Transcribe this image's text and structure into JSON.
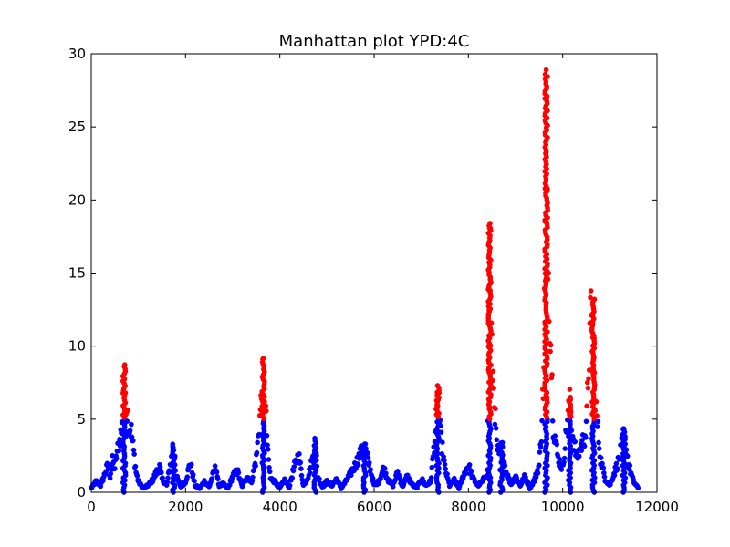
{
  "chart_data": {
    "type": "scatter",
    "title": "Manhattan plot YPD:4C",
    "xlabel": "",
    "ylabel": "",
    "xlim": [
      0,
      12000
    ],
    "ylim": [
      0,
      30
    ],
    "xticks": [
      0,
      2000,
      4000,
      6000,
      8000,
      10000,
      12000
    ],
    "yticks": [
      0,
      5,
      10,
      15,
      20,
      25,
      30
    ],
    "threshold": 5,
    "colors": {
      "below_threshold": "#0000ff",
      "above_threshold": "#ff0000"
    },
    "x_range_data": [
      0,
      11600
    ],
    "peaks": [
      {
        "x": 700,
        "y": 8.6
      },
      {
        "x": 3650,
        "y": 8.9
      },
      {
        "x": 7350,
        "y": 7.3
      },
      {
        "x": 8450,
        "y": 18.4
      },
      {
        "x": 9650,
        "y": 28.6
      },
      {
        "x": 10150,
        "y": 6.5
      },
      {
        "x": 10650,
        "y": 13.2
      },
      {
        "x": 11300,
        "y": 4.3
      },
      {
        "x": 4750,
        "y": 3.7
      },
      {
        "x": 5800,
        "y": 3.3
      },
      {
        "x": 1750,
        "y": 3.3
      },
      {
        "x": 8700,
        "y": 3.4
      }
    ],
    "series": [
      {
        "name": "y",
        "x": [
          0,
          100,
          200,
          300,
          350,
          400,
          450,
          500,
          550,
          600,
          650,
          700,
          750,
          800,
          850,
          900,
          950,
          1000,
          1100,
          1200,
          1300,
          1400,
          1450,
          1500,
          1600,
          1700,
          1750,
          1800,
          1900,
          2000,
          2100,
          2200,
          2300,
          2400,
          2500,
          2600,
          2650,
          2700,
          2800,
          2900,
          3000,
          3100,
          3200,
          3300,
          3400,
          3500,
          3550,
          3600,
          3650,
          3700,
          3750,
          3800,
          3900,
          4000,
          4100,
          4200,
          4300,
          4400,
          4500,
          4600,
          4700,
          4750,
          4800,
          4900,
          5000,
          5100,
          5200,
          5300,
          5400,
          5500,
          5600,
          5700,
          5800,
          5900,
          6000,
          6100,
          6200,
          6300,
          6400,
          6500,
          6600,
          6700,
          6800,
          6900,
          7000,
          7100,
          7200,
          7300,
          7350,
          7400,
          7500,
          7600,
          7700,
          7800,
          7900,
          8000,
          8100,
          8200,
          8300,
          8400,
          8450,
          8500,
          8550,
          8600,
          8650,
          8700,
          8800,
          8900,
          9000,
          9100,
          9200,
          9300,
          9400,
          9500,
          9550,
          9600,
          9650,
          9700,
          9750,
          9800,
          9900,
          10000,
          10050,
          10100,
          10150,
          10200,
          10300,
          10400,
          10500,
          10550,
          10600,
          10650,
          10700,
          10750,
          10800,
          10900,
          11000,
          11100,
          11200,
          11300,
          11400,
          11500,
          11600
        ],
        "y": [
          0.3,
          0.8,
          0.5,
          1.5,
          2.0,
          1.2,
          2.3,
          1.8,
          3.0,
          3.8,
          4.8,
          8.6,
          6.5,
          4.9,
          4.5,
          3.0,
          1.5,
          0.8,
          0.3,
          0.5,
          0.9,
          1.6,
          1.9,
          1.0,
          0.5,
          2.5,
          3.3,
          1.2,
          0.4,
          0.8,
          2.2,
          0.5,
          0.3,
          0.8,
          0.4,
          1.5,
          1.9,
          0.5,
          0.6,
          0.3,
          1.2,
          1.6,
          0.4,
          1.2,
          0.8,
          2.5,
          4.5,
          6.5,
          8.9,
          6.0,
          2.7,
          1.0,
          0.8,
          0.3,
          0.9,
          0.4,
          1.8,
          2.8,
          0.5,
          1.2,
          2.5,
          3.7,
          1.2,
          0.4,
          0.8,
          0.5,
          1.0,
          0.3,
          0.8,
          1.4,
          2.0,
          2.8,
          3.3,
          2.0,
          0.5,
          0.8,
          1.8,
          0.9,
          0.5,
          1.5,
          0.4,
          1.2,
          0.6,
          0.3,
          1.0,
          0.5,
          0.8,
          4.5,
          7.3,
          4.5,
          1.8,
          0.5,
          0.9,
          0.3,
          1.3,
          2.0,
          1.0,
          0.5,
          0.8,
          1.5,
          18.4,
          10.0,
          7.0,
          3.5,
          2.5,
          3.4,
          1.5,
          0.6,
          1.2,
          0.5,
          1.2,
          0.3,
          0.9,
          2.0,
          4.5,
          9.0,
          28.6,
          16.0,
          11.0,
          5.0,
          2.5,
          1.8,
          3.5,
          5.5,
          6.5,
          4.5,
          2.5,
          3.5,
          4.5,
          9.5,
          13.2,
          10.0,
          6.5,
          4.5,
          2.5,
          1.0,
          0.5,
          1.5,
          2.5,
          4.3,
          2.0,
          0.8,
          0.3
        ]
      }
    ]
  }
}
